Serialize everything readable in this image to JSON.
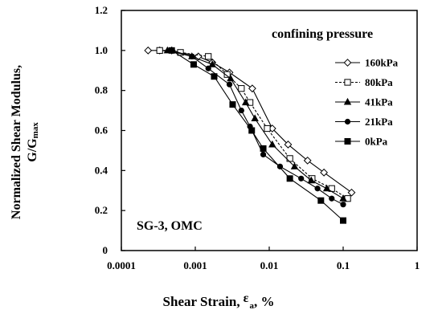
{
  "chart_data": {
    "type": "line",
    "xscale": "log",
    "xlim": [
      0.0001,
      1
    ],
    "ylim": [
      0,
      1.2
    ],
    "xticks": [
      "0.0001",
      "0.001",
      "0.01",
      "0.1",
      "1"
    ],
    "yticks": [
      "0",
      "0.2",
      "0.4",
      "0.6",
      "0.8",
      "1.0",
      "1.2"
    ],
    "xlabel_main": "Shear Strain,",
    "xlabel_symbol": "ε",
    "xlabel_sub": "a",
    "xlabel_unit": ", %",
    "ylabel_line1": "Normalized Shear Modulus,",
    "ylabel_line2_main": "G/G",
    "ylabel_line2_sub": "max",
    "legend_title": "confining pressure",
    "legend_position": "top-right",
    "annotation": "SG-3, OMC",
    "grid": false,
    "series": [
      {
        "name": "160kPa",
        "marker": "diamond",
        "dashed": false,
        "points": [
          [
            0.00023,
            1.0
          ],
          [
            0.00033,
            1.0
          ],
          [
            0.00048,
            1.0
          ],
          [
            0.0011,
            0.97
          ],
          [
            0.0017,
            0.94
          ],
          [
            0.0029,
            0.89
          ],
          [
            0.0059,
            0.81
          ],
          [
            0.011,
            0.61
          ],
          [
            0.018,
            0.53
          ],
          [
            0.033,
            0.45
          ],
          [
            0.055,
            0.39
          ],
          [
            0.13,
            0.29
          ]
        ]
      },
      {
        "name": "80kPa",
        "marker": "square-open",
        "dashed": true,
        "points": [
          [
            0.00033,
            1.0
          ],
          [
            0.00063,
            0.99
          ],
          [
            0.0015,
            0.97
          ],
          [
            0.0027,
            0.88
          ],
          [
            0.0042,
            0.81
          ],
          [
            0.0055,
            0.74
          ],
          [
            0.0094,
            0.61
          ],
          [
            0.019,
            0.46
          ],
          [
            0.038,
            0.36
          ],
          [
            0.07,
            0.31
          ],
          [
            0.115,
            0.26
          ]
        ]
      },
      {
        "name": "41kPa",
        "marker": "triangle",
        "dashed": false,
        "points": [
          [
            0.00042,
            1.0
          ],
          [
            0.0009,
            0.97
          ],
          [
            0.0017,
            0.93
          ],
          [
            0.003,
            0.86
          ],
          [
            0.0048,
            0.74
          ],
          [
            0.0064,
            0.66
          ],
          [
            0.011,
            0.53
          ],
          [
            0.022,
            0.42
          ],
          [
            0.037,
            0.35
          ],
          [
            0.06,
            0.31
          ],
          [
            0.1,
            0.26
          ]
        ]
      },
      {
        "name": "21kPa",
        "marker": "circle",
        "dashed": false,
        "points": [
          [
            0.00048,
            1.0
          ],
          [
            0.0009,
            0.97
          ],
          [
            0.0015,
            0.91
          ],
          [
            0.0029,
            0.83
          ],
          [
            0.0042,
            0.7
          ],
          [
            0.0055,
            0.62
          ],
          [
            0.0083,
            0.48
          ],
          [
            0.014,
            0.42
          ],
          [
            0.027,
            0.36
          ],
          [
            0.045,
            0.31
          ],
          [
            0.07,
            0.26
          ],
          [
            0.1,
            0.23
          ]
        ]
      },
      {
        "name": "0kPa",
        "marker": "square-filled",
        "dashed": false,
        "points": [
          [
            0.00048,
            1.0
          ],
          [
            0.00095,
            0.93
          ],
          [
            0.0018,
            0.87
          ],
          [
            0.0032,
            0.73
          ],
          [
            0.0058,
            0.6
          ],
          [
            0.0083,
            0.51
          ],
          [
            0.019,
            0.36
          ],
          [
            0.05,
            0.25
          ],
          [
            0.1,
            0.15
          ]
        ]
      }
    ]
  }
}
